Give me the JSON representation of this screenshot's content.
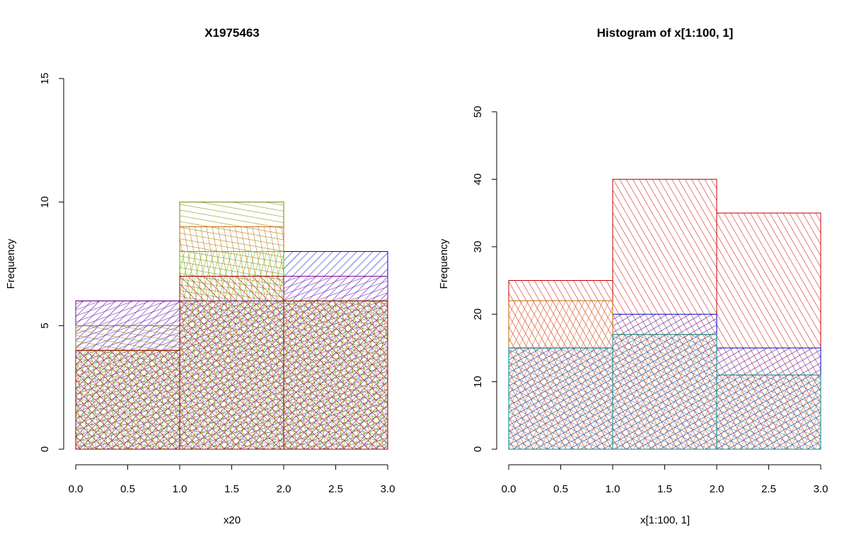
{
  "chart_data": [
    {
      "type": "bar",
      "title": "X1975463",
      "xlabel": "x20",
      "ylabel": "Frequency",
      "xlim": [
        0,
        3
      ],
      "ylim": [
        0,
        15
      ],
      "x_ticks": [
        "0.0",
        "0.5",
        "1.0",
        "1.5",
        "2.0",
        "2.5",
        "3.0"
      ],
      "y_ticks": [
        "0",
        "5",
        "10",
        "15"
      ],
      "bin_edges": [
        0,
        1,
        2,
        3
      ],
      "grid": false,
      "series": [
        {
          "values": [
            6,
            6,
            8
          ],
          "color": "#0000cc",
          "angle": 45
        },
        {
          "values": [
            6,
            6,
            7
          ],
          "color": "#8b008b",
          "angle": 70
        },
        {
          "values": [
            5,
            10,
            6
          ],
          "color": "#808000",
          "angle": 100
        },
        {
          "values": [
            4,
            9,
            6
          ],
          "color": "#cc6600",
          "angle": 170
        },
        {
          "values": [
            4,
            8,
            6
          ],
          "color": "#33cc00",
          "angle": 15
        },
        {
          "values": [
            4,
            7,
            6
          ],
          "color": "#990000",
          "angle": 135
        }
      ]
    },
    {
      "type": "bar",
      "title": "Histogram of x[1:100, 1]",
      "xlabel": "x[1:100, 1]",
      "ylabel": "Frequency",
      "xlim": [
        0,
        3
      ],
      "ylim": [
        0,
        50
      ],
      "x_ticks": [
        "0.0",
        "0.5",
        "1.0",
        "1.5",
        "2.0",
        "2.5",
        "3.0"
      ],
      "y_ticks": [
        "0",
        "10",
        "20",
        "30",
        "40",
        "50"
      ],
      "bin_edges": [
        0,
        1,
        2,
        3
      ],
      "grid": false,
      "series": [
        {
          "values": [
            25,
            40,
            35
          ],
          "color": "#cc0000",
          "angle": 150
        },
        {
          "values": [
            15,
            20,
            15
          ],
          "color": "#0000cc",
          "angle": 60
        },
        {
          "values": [
            22,
            17,
            11
          ],
          "color": "#cc6600",
          "angle": 25
        },
        {
          "values": [
            15,
            17,
            11
          ],
          "color": "#008b8b",
          "angle": 115
        }
      ]
    }
  ]
}
